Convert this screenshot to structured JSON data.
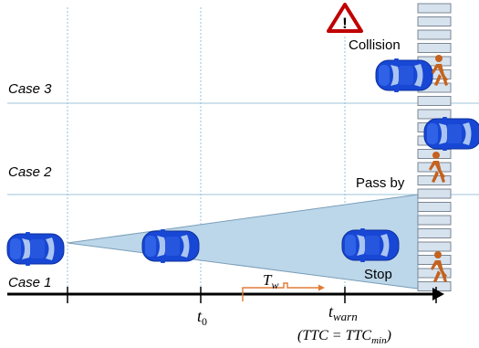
{
  "cases": [
    "Case 3",
    "Case 2",
    "Case 1"
  ],
  "events": {
    "collision": "Collision",
    "pass_by": "Pass by",
    "stop": "Stop",
    "warning_glyph": "!"
  },
  "time_labels": {
    "t0_base": "t",
    "t0_sub": "0",
    "twarn_base": "t",
    "twarn_sub": "warn",
    "tw_base": "T",
    "tw_sub": "w",
    "ttc_prefix": "(TTC = TTC",
    "ttc_sub": "min",
    "ttc_suffix": ")"
  },
  "colors": {
    "car": "#1747d4",
    "car_window": "#a9c4f0",
    "cone": "#bcd6ea",
    "separator": "#9cc6d8",
    "crosswalk": "#d6e2ee",
    "pedestrian": "#c4621f",
    "interval": "#e07b39",
    "warning_red": "#c00000"
  },
  "icons": [
    "car-icon",
    "pedestrian-icon",
    "warning-triangle-icon"
  ]
}
